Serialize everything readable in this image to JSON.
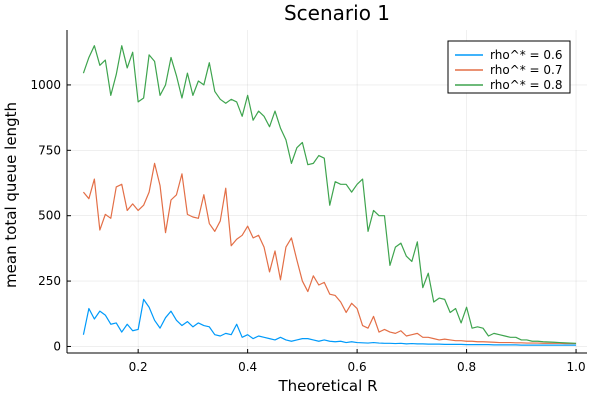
{
  "chart_data": {
    "type": "line",
    "title": "Scenario 1",
    "xlabel": "Theoretical R",
    "ylabel": "mean total queue length",
    "xlim": [
      0.07,
      1.02
    ],
    "ylim": [
      -25,
      1210
    ],
    "xticks": [
      0.2,
      0.4,
      0.6,
      0.8,
      1.0
    ],
    "xtick_labels": [
      "0.2",
      "0.4",
      "0.6",
      "0.8",
      "1.0"
    ],
    "yticks": [
      0,
      250,
      500,
      750,
      1000
    ],
    "ytick_labels": [
      "0",
      "250",
      "500",
      "750",
      "1000"
    ],
    "grid": true,
    "legend_position": "top-right",
    "x": [
      0.1,
      0.11,
      0.12,
      0.13,
      0.14,
      0.15,
      0.16,
      0.17,
      0.18,
      0.19,
      0.2,
      0.21,
      0.22,
      0.23,
      0.24,
      0.25,
      0.26,
      0.27,
      0.28,
      0.29,
      0.3,
      0.31,
      0.32,
      0.33,
      0.34,
      0.35,
      0.36,
      0.37,
      0.38,
      0.39,
      0.4,
      0.41,
      0.42,
      0.43,
      0.44,
      0.45,
      0.46,
      0.47,
      0.48,
      0.49,
      0.5,
      0.51,
      0.52,
      0.53,
      0.54,
      0.55,
      0.56,
      0.57,
      0.58,
      0.59,
      0.6,
      0.61,
      0.62,
      0.63,
      0.64,
      0.65,
      0.66,
      0.67,
      0.68,
      0.69,
      0.7,
      0.71,
      0.72,
      0.73,
      0.74,
      0.75,
      0.76,
      0.77,
      0.78,
      0.79,
      0.8,
      0.81,
      0.82,
      0.83,
      0.84,
      0.85,
      0.86,
      0.87,
      0.88,
      0.89,
      0.9,
      0.91,
      0.92,
      0.93,
      0.94,
      0.95,
      0.96,
      0.97,
      0.98,
      0.99,
      1.0
    ],
    "series": [
      {
        "name": "rho^* = 0.6",
        "color": "#009AFA",
        "values": [
          45,
          145,
          105,
          135,
          120,
          85,
          90,
          55,
          85,
          60,
          65,
          180,
          150,
          100,
          70,
          110,
          135,
          100,
          80,
          95,
          75,
          90,
          80,
          75,
          45,
          40,
          50,
          45,
          85,
          35,
          45,
          30,
          40,
          35,
          30,
          25,
          35,
          25,
          20,
          25,
          30,
          30,
          25,
          20,
          25,
          20,
          18,
          20,
          15,
          18,
          15,
          14,
          13,
          15,
          13,
          12,
          12,
          11,
          12,
          10,
          11,
          10,
          10,
          9,
          9,
          9,
          8,
          8,
          8,
          8,
          7,
          7,
          7,
          7,
          7,
          6,
          6,
          6,
          6,
          6,
          5,
          5,
          5,
          5,
          5,
          5,
          5,
          5,
          5,
          5,
          5
        ]
      },
      {
        "name": "rho^* = 0.7",
        "color": "#E36F47",
        "values": [
          590,
          565,
          640,
          445,
          505,
          490,
          610,
          620,
          520,
          545,
          520,
          540,
          590,
          700,
          615,
          435,
          560,
          580,
          660,
          505,
          495,
          490,
          580,
          470,
          440,
          480,
          605,
          385,
          410,
          425,
          460,
          415,
          425,
          380,
          285,
          365,
          255,
          380,
          415,
          330,
          250,
          210,
          270,
          235,
          245,
          200,
          195,
          170,
          130,
          165,
          145,
          80,
          70,
          115,
          55,
          65,
          55,
          50,
          60,
          40,
          45,
          50,
          35,
          35,
          30,
          25,
          28,
          25,
          22,
          22,
          20,
          20,
          18,
          18,
          17,
          16,
          15,
          15,
          15,
          14,
          14,
          13,
          13,
          13,
          12,
          12,
          12,
          12,
          11,
          11,
          11
        ]
      },
      {
        "name": "rho^* = 0.8",
        "color": "#3EA44E",
        "values": [
          1045,
          1105,
          1150,
          1075,
          1095,
          960,
          1040,
          1150,
          1065,
          1125,
          935,
          950,
          1115,
          1090,
          960,
          1000,
          1105,
          1035,
          950,
          1045,
          960,
          1015,
          1000,
          1085,
          975,
          945,
          930,
          945,
          935,
          880,
          960,
          865,
          900,
          880,
          840,
          900,
          835,
          790,
          700,
          760,
          780,
          695,
          700,
          730,
          720,
          540,
          630,
          620,
          620,
          590,
          620,
          640,
          440,
          520,
          500,
          500,
          310,
          380,
          395,
          345,
          325,
          400,
          225,
          280,
          170,
          185,
          180,
          130,
          145,
          90,
          150,
          70,
          75,
          70,
          40,
          50,
          45,
          40,
          35,
          35,
          25,
          25,
          20,
          20,
          18,
          17,
          16,
          15,
          14,
          13,
          12
        ]
      }
    ]
  }
}
